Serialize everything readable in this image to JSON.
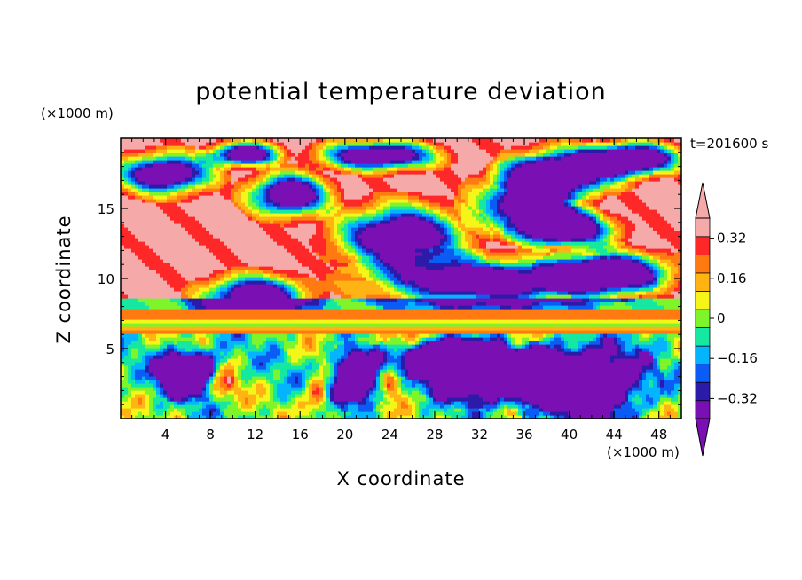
{
  "chart_data": {
    "type": "heatmap",
    "title": "potential temperature deviation",
    "xlabel": "X coordinate",
    "ylabel": "Z coordinate",
    "x_unit": "(×1000 m)",
    "y_unit": "(×1000 m)",
    "time_label": "t=201600 s",
    "xlim": [
      0,
      50
    ],
    "ylim": [
      0,
      20
    ],
    "x_ticks": [
      4,
      8,
      12,
      16,
      20,
      24,
      28,
      32,
      36,
      40,
      44,
      48
    ],
    "y_ticks": [
      5,
      10,
      15
    ],
    "colorbar": {
      "levels": [
        -0.4,
        -0.32,
        -0.24,
        -0.16,
        -0.08,
        0,
        0.08,
        0.16,
        0.24,
        0.32,
        0.4
      ],
      "labels": [
        "0.32",
        "0.16",
        "0",
        "−0.16",
        "−0.32"
      ],
      "label_values": [
        0.32,
        0.16,
        0,
        -0.16,
        -0.32
      ],
      "colors": [
        "#7a10b4",
        "#2c1aa8",
        "#0a5cf5",
        "#05b4ff",
        "#15e8a0",
        "#7ef52a",
        "#f5f51a",
        "#ffb414",
        "#ff7a10",
        "#ff2828",
        "#f5a9a9"
      ],
      "over_color": "#f5a9a9",
      "under_color": "#7a10b4"
    },
    "bands": [
      {
        "z_range": [
          7.55,
          7.85
        ],
        "value": 0.3
      },
      {
        "z_range": [
          7.2,
          7.55
        ],
        "value": 0.26
      },
      {
        "z_range": [
          6.95,
          7.2
        ],
        "value": 0.14
      },
      {
        "z_range": [
          6.6,
          6.95
        ],
        "value": 0.07
      },
      {
        "z_range": [
          6.3,
          6.6
        ],
        "value": 0.16
      },
      {
        "z_range": [
          6.0,
          6.3
        ],
        "value": 0.26
      }
    ],
    "negative_blobs": [
      {
        "center": [
          4,
          17.5
        ],
        "radius": [
          4,
          1.4
        ],
        "value": -0.45
      },
      {
        "center": [
          15,
          16
        ],
        "radius": [
          3.5,
          1.5
        ],
        "value": -0.45
      },
      {
        "center": [
          23,
          18.8
        ],
        "radius": [
          5,
          1.0
        ],
        "value": -0.45
      },
      {
        "center": [
          36.5,
          15.5
        ],
        "radius": [
          4.5,
          2.2
        ],
        "value": -0.45
      },
      {
        "center": [
          40,
          17.8
        ],
        "radius": [
          5,
          1.5
        ],
        "value": -0.45
      },
      {
        "center": [
          25,
          13
        ],
        "radius": [
          5.5,
          2.2
        ],
        "value": -0.45
      },
      {
        "center": [
          40,
          13.5
        ],
        "radius": [
          4,
          1.2
        ],
        "value": -0.45
      },
      {
        "center": [
          46,
          18.6
        ],
        "radius": [
          4,
          1.1
        ],
        "value": -0.45
      },
      {
        "center": [
          11,
          18.9
        ],
        "radius": [
          3,
          0.8
        ],
        "value": -0.45
      },
      {
        "center": [
          12,
          8.8
        ],
        "radius": [
          4.5,
          1.4
        ],
        "value": -0.45
      },
      {
        "center": [
          33,
          9.8
        ],
        "radius": [
          10,
          1.6
        ],
        "value": -0.45
      },
      {
        "center": [
          44,
          10.5
        ],
        "radius": [
          5,
          1.4
        ],
        "value": -0.45
      },
      {
        "center": [
          28,
          4.5
        ],
        "radius": [
          4,
          1.2
        ],
        "value": -0.45
      },
      {
        "center": [
          33,
          3.3
        ],
        "radius": [
          5,
          1.8
        ],
        "value": -0.45
      },
      {
        "center": [
          41,
          2.6
        ],
        "radius": [
          5,
          2.4
        ],
        "value": -0.45
      },
      {
        "center": [
          6,
          3.3
        ],
        "radius": [
          2.5,
          1.5
        ],
        "value": -0.45
      },
      {
        "center": [
          21,
          3.0
        ],
        "radius": [
          2,
          1.8
        ],
        "value": -0.45
      }
    ],
    "positive_blobs": [
      {
        "center": [
          9,
          2.5
        ],
        "radius": [
          1.5,
          1.1
        ],
        "value": 0.36
      },
      {
        "center": [
          17.5,
          1.5
        ],
        "radius": [
          1.3,
          1.6
        ],
        "value": 0.36
      },
      {
        "center": [
          24,
          2.5
        ],
        "radius": [
          1.2,
          1.2
        ],
        "value": 0.3
      },
      {
        "center": [
          25,
          5.2
        ],
        "radius": [
          2.5,
          1.6
        ],
        "value": 0.45
      },
      {
        "center": [
          43.5,
          2.5
        ],
        "radius": [
          0.9,
          1.0
        ],
        "value": 0.3
      },
      {
        "center": [
          35,
          5.5
        ],
        "radius": [
          1.2,
          0.7
        ],
        "value": 0.3
      }
    ]
  }
}
